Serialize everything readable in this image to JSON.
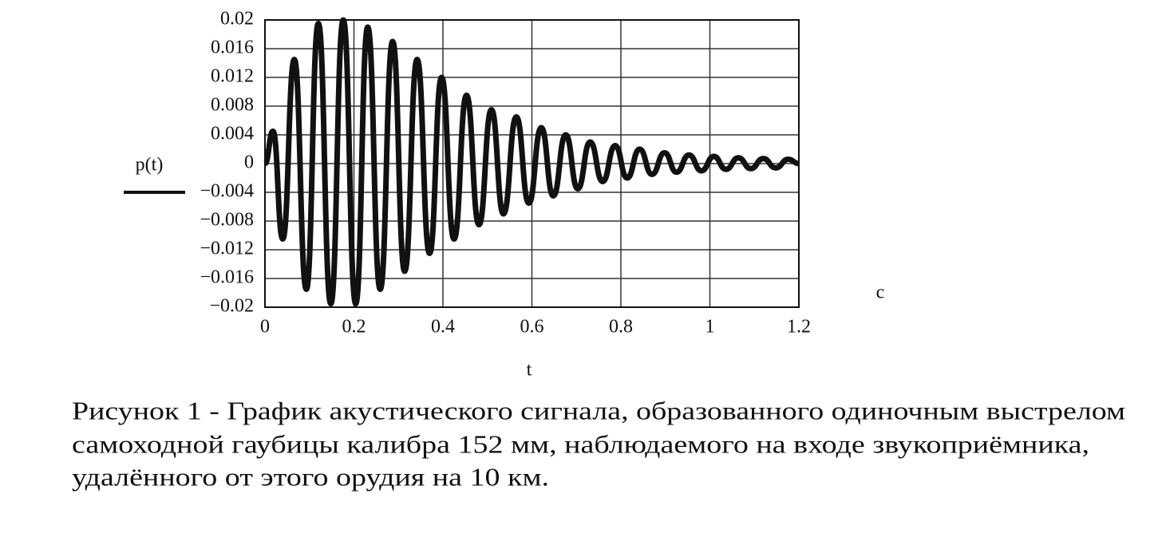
{
  "chart_data": {
    "type": "line",
    "xlabel": "t",
    "annotation": "c",
    "caption": [
      "Рисунок 1 - График акустического сигнала, образованного одиночным выстрелом",
      "самоходной гаубицы калибра 152 мм, наблюдаемого на входе звукоприёмника,",
      "удалённого от этого орудия на 10 км."
    ],
    "x": [
      0,
      0.018,
      0.04,
      0.066,
      0.093,
      0.12,
      0.148,
      0.176,
      0.204,
      0.231,
      0.259,
      0.287,
      0.314,
      0.342,
      0.37,
      0.397,
      0.425,
      0.453,
      0.481,
      0.509,
      0.536,
      0.565,
      0.593,
      0.621,
      0.648,
      0.676,
      0.703,
      0.731,
      0.759,
      0.787,
      0.814,
      0.842,
      0.87,
      0.898,
      0.925,
      0.953,
      0.981,
      1.009,
      1.036,
      1.064,
      1.092,
      1.12,
      1.148,
      1.176,
      1.2
    ],
    "series": [
      {
        "name": "p(t)",
        "color": "#111111",
        "values": [
          0,
          0.0045,
          -0.0105,
          0.0145,
          -0.0175,
          0.0195,
          -0.0195,
          0.02,
          -0.0195,
          0.019,
          -0.0175,
          0.017,
          -0.015,
          0.0145,
          -0.0125,
          0.012,
          -0.0105,
          0.0095,
          -0.0085,
          0.0075,
          -0.007,
          0.0065,
          -0.0055,
          0.005,
          -0.0045,
          0.004,
          -0.0035,
          0.003,
          -0.0025,
          0.0025,
          -0.002,
          0.002,
          -0.0015,
          0.0015,
          -0.0012,
          0.0012,
          -0.001,
          0.001,
          -0.0008,
          0.0008,
          -0.0007,
          0.0007,
          -0.0006,
          0.0006,
          0
        ]
      }
    ],
    "xlim": [
      0,
      1.2
    ],
    "xticks": [
      0,
      0.2,
      0.4,
      0.6,
      0.8,
      1,
      1.2
    ],
    "ylim": [
      -0.02,
      0.02
    ],
    "yticks": [
      {
        "value": -0.02,
        "label": "−0.02"
      },
      {
        "value": -0.016,
        "label": "−0.016"
      },
      {
        "value": -0.012,
        "label": "−0.012"
      },
      {
        "value": -0.008,
        "label": "−0.008"
      },
      {
        "value": -0.004,
        "label": "−0.004"
      },
      0,
      0.004,
      0.008,
      0.012,
      0.016,
      0.02
    ],
    "grid": true
  }
}
